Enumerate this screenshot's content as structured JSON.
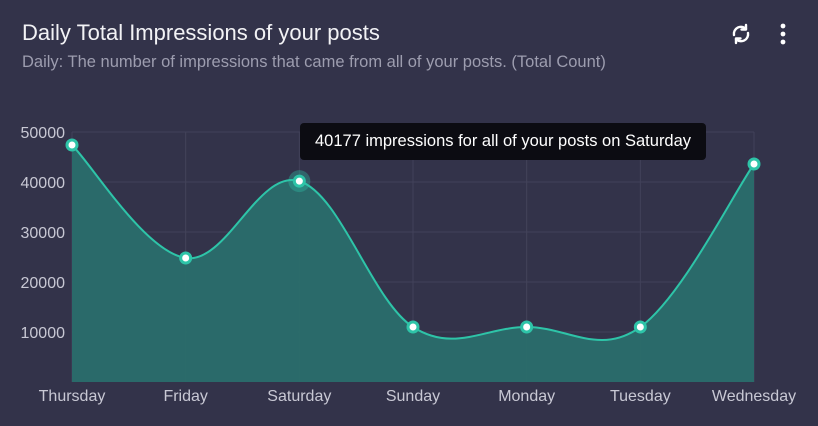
{
  "header": {
    "title": "Daily Total Impressions of your posts",
    "subtitle": "Daily: The number of impressions that came from all of your posts. (Total Count)",
    "icons": [
      "refresh-icon",
      "more-vertical-icon"
    ]
  },
  "tooltip": {
    "text": "40177 impressions for all of your posts on Saturday"
  },
  "colors": {
    "background": "#33334a",
    "line": "#2ec4a8",
    "fill": "#2a6e6c",
    "grid": "#42425a"
  },
  "chart_data": {
    "type": "area",
    "title": "",
    "categories": [
      "Thursday",
      "Friday",
      "Saturday",
      "Sunday",
      "Monday",
      "Tuesday",
      "Wednesday"
    ],
    "values": [
      47400,
      24800,
      40177,
      11000,
      11000,
      11000,
      43600
    ],
    "ylim": [
      0,
      50000
    ],
    "yticks": [
      10000,
      20000,
      30000,
      40000,
      50000
    ],
    "grid": true,
    "highlighted": "Saturday"
  }
}
